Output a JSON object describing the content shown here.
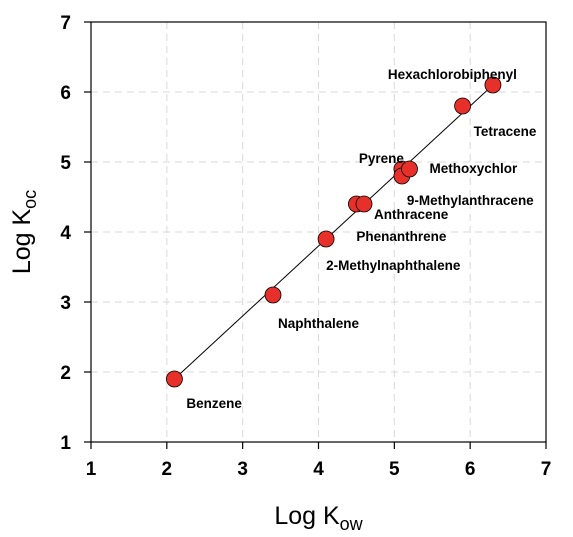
{
  "chart_data": {
    "type": "scatter",
    "xlabel": {
      "main": "Log K",
      "sub": "ow"
    },
    "ylabel": {
      "main": "Log K",
      "sub": "oc"
    },
    "xlim": [
      1,
      7
    ],
    "ylim": [
      1,
      7
    ],
    "xticks": [
      "1",
      "2",
      "3",
      "4",
      "5",
      "6",
      "7"
    ],
    "yticks": [
      "1",
      "2",
      "3",
      "4",
      "5",
      "6",
      "7"
    ],
    "grid": true,
    "marker_color": "#e8302a",
    "fit_line": {
      "x": [
        2.1,
        6.3
      ],
      "y": [
        1.9,
        6.1
      ]
    },
    "points": [
      {
        "name": "Benzene",
        "x": 2.1,
        "y": 1.9
      },
      {
        "name": "Naphthalene",
        "x": 3.4,
        "y": 3.1
      },
      {
        "name": "2-Methylnaphthalene",
        "x": 4.1,
        "y": 3.9
      },
      {
        "name": "Phenanthrene",
        "x": 4.5,
        "y": 4.4
      },
      {
        "name": "Anthracene",
        "x": 4.6,
        "y": 4.4
      },
      {
        "name": "Pyrene",
        "x": 5.1,
        "y": 4.9
      },
      {
        "name": "9-Methylanthracene",
        "x": 5.1,
        "y": 4.8
      },
      {
        "name": "Methoxychlor",
        "x": 5.2,
        "y": 4.9
      },
      {
        "name": "Tetracene",
        "x": 5.9,
        "y": 5.8
      },
      {
        "name": "Hexachlorobiphenyl",
        "x": 6.3,
        "y": 6.1
      }
    ]
  }
}
